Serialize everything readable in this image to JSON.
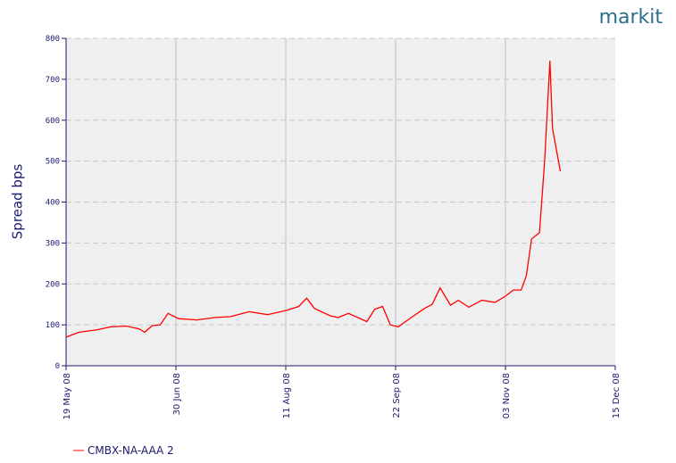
{
  "logo": "markit",
  "chart_data": {
    "type": "line",
    "ylabel": "Spread bps",
    "x": [
      "2008-05-19",
      "2008-05-24",
      "2008-05-31",
      "2008-06-05",
      "2008-06-11",
      "2008-06-16",
      "2008-06-18",
      "2008-06-21",
      "2008-06-24",
      "2008-06-27",
      "2008-07-01",
      "2008-07-08",
      "2008-07-15",
      "2008-07-21",
      "2008-07-28",
      "2008-08-04",
      "2008-08-11",
      "2008-08-16",
      "2008-08-19",
      "2008-08-22",
      "2008-08-28",
      "2008-08-31",
      "2008-09-04",
      "2008-09-11",
      "2008-09-14",
      "2008-09-17",
      "2008-09-20",
      "2008-09-23",
      "2008-09-28",
      "2008-10-03",
      "2008-10-06",
      "2008-10-09",
      "2008-10-13",
      "2008-10-16",
      "2008-10-20",
      "2008-10-25",
      "2008-10-30",
      "2008-11-03",
      "2008-11-06",
      "2008-11-09",
      "2008-11-11",
      "2008-11-13",
      "2008-11-16",
      "2008-11-18",
      "2008-11-20",
      "2008-11-21",
      "2008-11-24"
    ],
    "series": [
      {
        "name": "CMBX-NA-AAA 2",
        "color": "#ff0000",
        "values": [
          70,
          82,
          88,
          95,
          97,
          90,
          82,
          98,
          100,
          128,
          115,
          112,
          118,
          120,
          132,
          125,
          135,
          145,
          165,
          140,
          122,
          118,
          128,
          108,
          138,
          145,
          100,
          95,
          118,
          140,
          150,
          190,
          148,
          160,
          143,
          160,
          155,
          170,
          185,
          185,
          220,
          310,
          325,
          500,
          745,
          580,
          475
        ]
      }
    ],
    "xlim": [
      "2008-05-19",
      "2008-12-15"
    ],
    "xticks": [
      {
        "value": "2008-05-19",
        "label": "19 May 08"
      },
      {
        "value": "2008-06-30",
        "label": "30 Jun 08"
      },
      {
        "value": "2008-08-11",
        "label": "11 Aug 08"
      },
      {
        "value": "2008-09-22",
        "label": "22 Sep 08"
      },
      {
        "value": "2008-11-03",
        "label": "03 Nov 08"
      },
      {
        "value": "2008-12-15",
        "label": "15 Dec 08"
      }
    ],
    "ylim": [
      0,
      800
    ],
    "yticks": [
      0,
      100,
      200,
      300,
      400,
      500,
      600,
      700,
      800
    ],
    "grid": true
  }
}
